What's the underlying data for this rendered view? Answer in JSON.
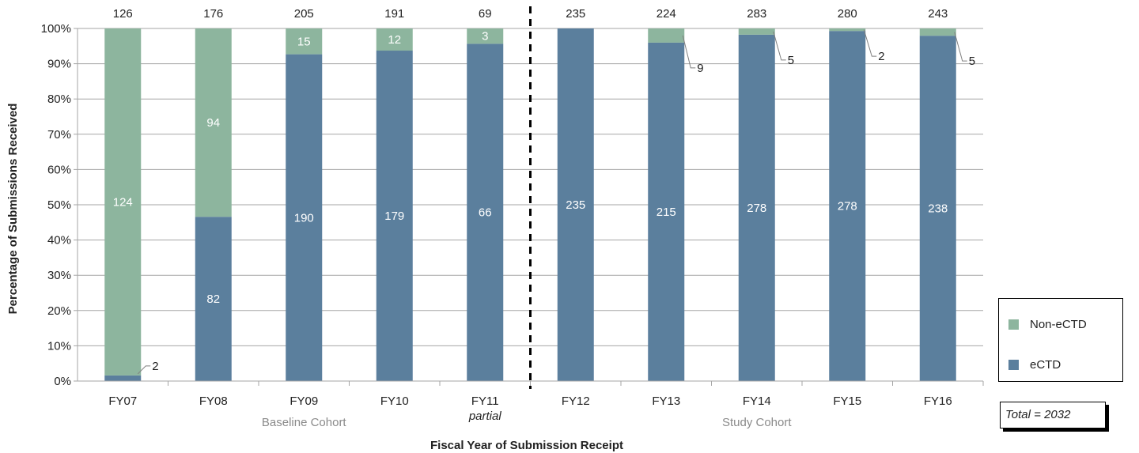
{
  "chart_data": {
    "type": "bar",
    "stacked": "percent",
    "categories": [
      "FY07",
      "FY08",
      "FY09",
      "FY10",
      "FY11",
      "FY12",
      "FY13",
      "FY14",
      "FY15",
      "FY16"
    ],
    "category_sublabels": [
      "",
      "",
      "",
      "",
      "partial",
      "",
      "",
      "",
      "",
      ""
    ],
    "series": [
      {
        "name": "eCTD",
        "values": [
          2,
          82,
          190,
          179,
          66,
          235,
          215,
          278,
          278,
          238
        ],
        "color": "#5b7f9d"
      },
      {
        "name": "Non-eCTD",
        "values": [
          124,
          94,
          15,
          12,
          3,
          0,
          9,
          5,
          2,
          5
        ],
        "color": "#8db59e"
      }
    ],
    "totals": [
      "126",
      "176",
      "205",
      "191",
      "69",
      "235",
      "224",
      "283",
      "280",
      "243"
    ],
    "bar_labels": {
      "eCTD": [
        "2",
        "82",
        "190",
        "179",
        "66",
        "235",
        "215",
        "278",
        "278",
        "238"
      ],
      "Non-eCTD": [
        "124",
        "94",
        "15",
        "12",
        "3",
        "",
        "9",
        "5",
        "2",
        "5"
      ]
    },
    "callouts": [
      "eCTD:FY07",
      "Non-eCTD:FY13",
      "Non-eCTD:FY14",
      "Non-eCTD:FY15",
      "Non-eCTD:FY16"
    ],
    "ylabel": "Percentage of Submissions Received",
    "xlabel": "Fiscal Year of Submission Receipt",
    "ylim": [
      0,
      100
    ],
    "y_ticks": [
      "0%",
      "10%",
      "20%",
      "30%",
      "40%",
      "50%",
      "60%",
      "70%",
      "80%",
      "90%",
      "100%"
    ],
    "grid": "horizontal",
    "cohorts": [
      {
        "label": "Baseline Cohort",
        "categories": [
          "FY07",
          "FY08",
          "FY09",
          "FY10",
          "FY11"
        ]
      },
      {
        "label": "Study Cohort",
        "categories": [
          "FY12",
          "FY13",
          "FY14",
          "FY15",
          "FY16"
        ]
      }
    ],
    "divider": "dashed line between FY11 and FY12",
    "legend": {
      "position": "right",
      "entries": [
        {
          "label": "Non-eCTD",
          "color": "#8db59e"
        },
        {
          "label": "eCTD",
          "color": "#5b7f9d"
        }
      ]
    },
    "annotation": "Total = 2032"
  }
}
